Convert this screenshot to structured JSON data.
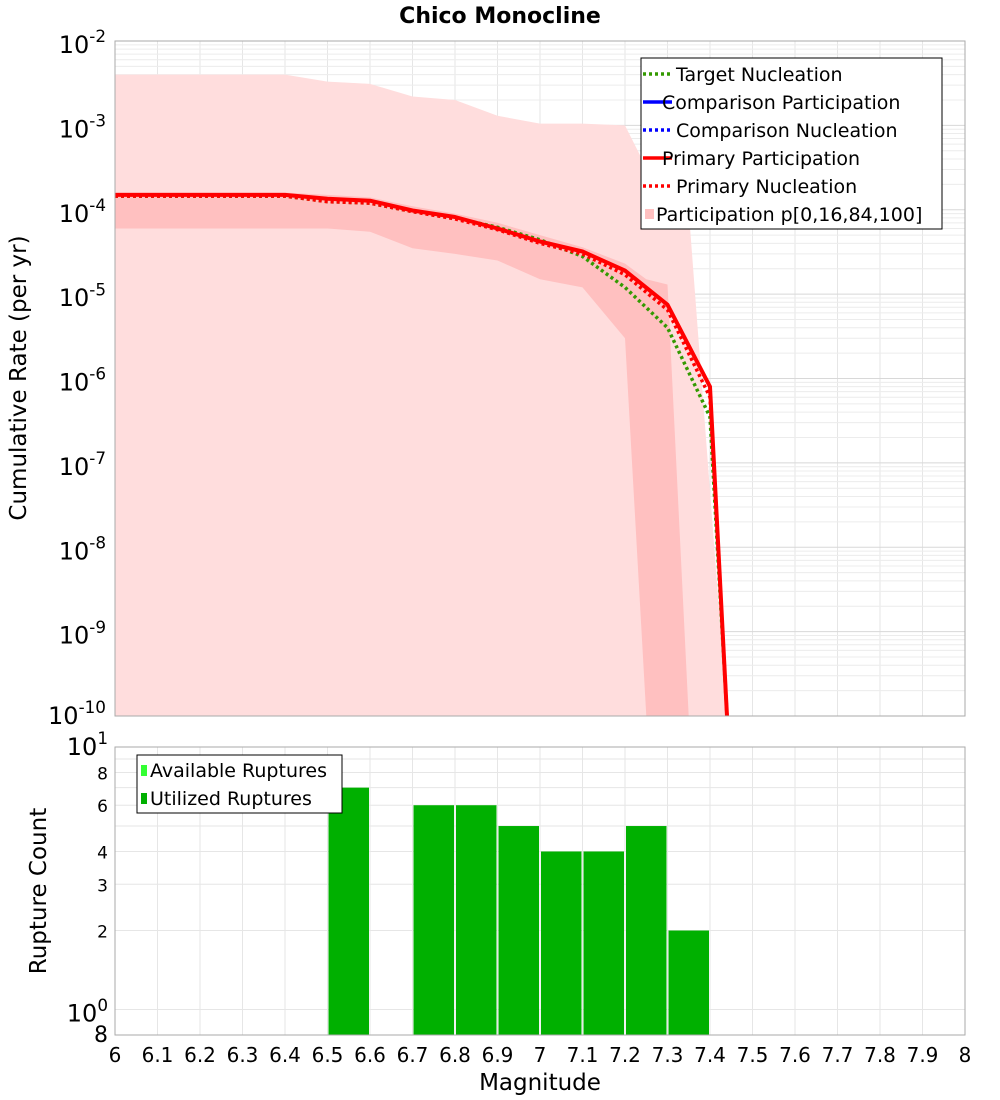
{
  "chart_data": [
    {
      "type": "line",
      "title": "Chico Monocline",
      "xlabel": "",
      "ylabel": "Cumulative Rate (per yr)",
      "xlim": [
        6,
        8
      ],
      "ylim": [
        1e-10,
        0.01
      ],
      "yscale": "log",
      "grid": true,
      "legend_position": "top-right",
      "y_tick_labels": [
        {
          "base": "10",
          "exp": "-2"
        },
        {
          "base": "10",
          "exp": "-3"
        },
        {
          "base": "10",
          "exp": "-4"
        },
        {
          "base": "10",
          "exp": "-5"
        },
        {
          "base": "10",
          "exp": "-6"
        },
        {
          "base": "10",
          "exp": "-7"
        },
        {
          "base": "10",
          "exp": "-8"
        },
        {
          "base": "10",
          "exp": "-9"
        },
        {
          "base": "10",
          "exp": "-10"
        }
      ],
      "legend": [
        "Target Nucleation",
        "Comparison Participation",
        "Comparison Nucleation",
        "Primary Participation",
        "Primary Nucleation",
        "Participation p[0,16,84,100]"
      ],
      "series": [
        {
          "name": "Target Nucleation",
          "color": "#339900",
          "dash": "dotted",
          "x": [
            6.0,
            6.4,
            6.5,
            6.6,
            6.7,
            6.8,
            6.9,
            7.0,
            7.1,
            7.2,
            7.3,
            7.4,
            7.44
          ],
          "y": [
            0.000145,
            0.000145,
            0.000125,
            0.00012,
            9.5e-05,
            8e-05,
            6.2e-05,
            4.4e-05,
            2.8e-05,
            1.2e-05,
            4e-06,
            3.5e-07,
            1e-10
          ]
        },
        {
          "name": "Primary Nucleation",
          "color": "#ff0000",
          "dash": "dotted",
          "x": [
            6.0,
            6.4,
            6.5,
            6.6,
            6.7,
            6.8,
            6.9,
            7.0,
            7.1,
            7.2,
            7.3,
            7.4,
            7.44
          ],
          "y": [
            0.000145,
            0.000145,
            0.000125,
            0.00012,
            9.5e-05,
            7.8e-05,
            5.8e-05,
            4e-05,
            3e-05,
            1.7e-05,
            6.5e-06,
            6e-07,
            1e-10
          ]
        },
        {
          "name": "Primary Participation",
          "color": "#ff0000",
          "dash": "solid",
          "x": [
            6.0,
            6.4,
            6.5,
            6.6,
            6.7,
            6.8,
            6.9,
            7.0,
            7.1,
            7.2,
            7.3,
            7.4,
            7.44
          ],
          "y": [
            0.00015,
            0.00015,
            0.000135,
            0.000128,
            9.8e-05,
            8.2e-05,
            6e-05,
            4.2e-05,
            3.2e-05,
            1.9e-05,
            7.5e-06,
            8e-07,
            1e-10
          ]
        }
      ],
      "bands": [
        {
          "name": "p0-p100",
          "color": "#ffdddd",
          "x": [
            6.0,
            6.4,
            6.5,
            6.6,
            6.7,
            6.8,
            6.9,
            7.0,
            7.1,
            7.2,
            7.3,
            7.35,
            7.44
          ],
          "upper": [
            0.004,
            0.004,
            0.0033,
            0.0031,
            0.0022,
            0.002,
            0.0013,
            0.00105,
            0.00105,
            0.001,
            0.0001,
            0.0001,
            1e-10
          ],
          "lower": [
            1e-10,
            1e-10,
            1e-10,
            1e-10,
            1e-10,
            1e-10,
            1e-10,
            1e-10,
            1e-10,
            1e-10,
            1e-10,
            1e-10,
            1e-10
          ]
        },
        {
          "name": "p16-p84",
          "color": "#ffc0c0",
          "x": [
            6.0,
            6.4,
            6.5,
            6.6,
            6.7,
            6.8,
            6.9,
            7.0,
            7.1,
            7.2,
            7.25,
            7.3,
            7.35
          ],
          "upper": [
            0.00016,
            0.00016,
            0.00015,
            0.00014,
            0.00011,
            9e-05,
            7e-05,
            5e-05,
            3.6e-05,
            2.3e-05,
            1.5e-05,
            1.3e-05,
            1e-10
          ],
          "lower": [
            6e-05,
            6e-05,
            6e-05,
            5.5e-05,
            3.5e-05,
            3e-05,
            2.5e-05,
            1.5e-05,
            1.2e-05,
            3e-06,
            1e-10,
            1e-10,
            1e-10
          ]
        }
      ]
    },
    {
      "type": "bar",
      "xlabel": "Magnitude",
      "ylabel": "Rupture Count",
      "xlim": [
        6,
        8
      ],
      "ylim": [
        1,
        10
      ],
      "yscale": "log",
      "grid": true,
      "legend_position": "top-left",
      "x_tick_labels": [
        "6",
        "6.1",
        "6.2",
        "6.3",
        "6.4",
        "6.5",
        "6.6",
        "6.7",
        "6.8",
        "6.9",
        "7",
        "7.1",
        "7.2",
        "7.3",
        "7.4",
        "7.5",
        "7.6",
        "7.7",
        "7.8",
        "7.9",
        "8"
      ],
      "y_tick_labels": [
        {
          "base": "10",
          "exp": "1"
        },
        {
          "base": "8",
          "exp": ""
        },
        {
          "base": "6",
          "exp": ""
        },
        {
          "base": "4",
          "exp": ""
        },
        {
          "base": "3",
          "exp": ""
        },
        {
          "base": "2",
          "exp": ""
        },
        {
          "base": "10",
          "exp": "0"
        },
        {
          "base": "8",
          "exp": ""
        }
      ],
      "legend": [
        "Available Ruptures",
        "Utilized Ruptures"
      ],
      "legend_colors": [
        "#33ff33",
        "#00b000"
      ],
      "series": [
        {
          "name": "Available Ruptures",
          "color": "#bfe8bf",
          "bins": [
            [
              6.5,
              6.6
            ],
            [
              6.7,
              6.8
            ],
            [
              6.8,
              6.9
            ],
            [
              6.9,
              7.0
            ],
            [
              7.0,
              7.1
            ],
            [
              7.1,
              7.2
            ],
            [
              7.2,
              7.3
            ],
            [
              7.3,
              7.4
            ]
          ],
          "values": [
            7,
            6,
            6,
            5,
            4,
            4,
            5,
            2
          ]
        },
        {
          "name": "Utilized Ruptures",
          "color": "#00b000",
          "bins": [
            [
              6.5,
              6.6
            ],
            [
              6.7,
              6.8
            ],
            [
              6.8,
              6.9
            ],
            [
              6.9,
              7.0
            ],
            [
              7.0,
              7.1
            ],
            [
              7.1,
              7.2
            ],
            [
              7.2,
              7.3
            ],
            [
              7.3,
              7.4
            ]
          ],
          "values": [
            7,
            6,
            6,
            5,
            4,
            4,
            5,
            2
          ]
        }
      ]
    }
  ]
}
